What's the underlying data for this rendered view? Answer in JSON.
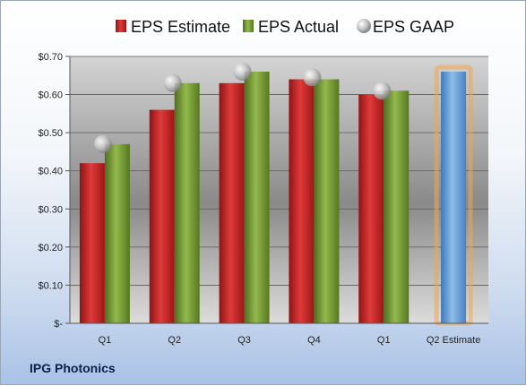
{
  "company": "IPG Photonics",
  "colors": {
    "estimate": "#d32a2a",
    "actual": "#7fa43c",
    "gaap": "#b8b8b8",
    "forecast": "#6aa0d8",
    "forecast_glow": "#f2a64a"
  },
  "chart_data": {
    "type": "bar",
    "categories": [
      "Q1",
      "Q2",
      "Q3",
      "Q4",
      "Q1",
      "Q2 Estimate"
    ],
    "series": [
      {
        "name": "EPS Estimate",
        "values": [
          0.42,
          0.56,
          0.63,
          0.64,
          0.6,
          null
        ]
      },
      {
        "name": "EPS Actual",
        "values": [
          0.47,
          0.63,
          0.66,
          0.64,
          0.61,
          null
        ]
      },
      {
        "name": "EPS GAAP",
        "values": [
          0.47,
          0.63,
          0.66,
          0.645,
          0.61,
          null
        ]
      }
    ],
    "forecast": {
      "category": "Q2 Estimate",
      "value": 0.66
    },
    "y_ticks": [
      "$-",
      "$0.10",
      "$0.20",
      "$0.30",
      "$0.40",
      "$0.50",
      "$0.60",
      "$0.70"
    ],
    "ylim": [
      0,
      0.7
    ],
    "grid": true,
    "legend_position": "top"
  }
}
